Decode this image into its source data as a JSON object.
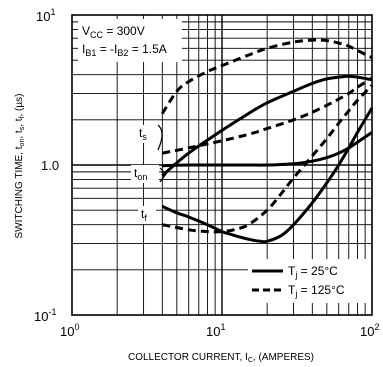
{
  "chart_data": {
    "type": "line",
    "x_scale": "log",
    "y_scale": "log",
    "xlim": [
      1,
      100
    ],
    "ylim": [
      0.1,
      10
    ],
    "grid": true,
    "xlabel": {
      "main": "COLLECTOR CURRENT, I",
      "sub": "C",
      "suffix": ", (AMPERES)"
    },
    "ylabel": {
      "parts": [
        {
          "t": "SWITCHING TIME, t",
          "sub": false
        },
        {
          "t": "on",
          "sub": true
        },
        {
          "t": ", t",
          "sub": false
        },
        {
          "t": "s",
          "sub": true
        },
        {
          "t": ", t",
          "sub": false
        },
        {
          "t": "f",
          "sub": true
        },
        {
          "t": ", (µs)",
          "sub": false
        }
      ]
    },
    "x_ticks": [
      {
        "base": "10",
        "exp": "0",
        "value": 1
      },
      {
        "base": "10",
        "exp": "1",
        "value": 10
      },
      {
        "base": "10",
        "exp": "2",
        "value": 100
      }
    ],
    "y_ticks": [
      {
        "base": "10",
        "exp": "1",
        "value": 10
      },
      {
        "base": "1.0",
        "exp": "",
        "value": 1
      },
      {
        "base": "10",
        "exp": "-1",
        "value": 0.1
      }
    ],
    "conditions": [
      {
        "main": "V",
        "sub": "CC",
        "rest": " = 300V"
      },
      {
        "main": "I",
        "sub": "B1",
        "rest": " = -I",
        "sub2": "B2",
        "rest2": " = 1.5A"
      }
    ],
    "legend": {
      "position": "bottom-right",
      "entries": [
        {
          "main": "T",
          "sub": "j",
          "rest": " = 25°C",
          "style": "solid"
        },
        {
          "main": "T",
          "sub": "j",
          "rest": " = 125°C",
          "style": "dashed"
        }
      ]
    },
    "curve_labels": [
      {
        "main": "t",
        "sub": "s",
        "at": {
          "x": 3.3,
          "y": 1.75
        }
      },
      {
        "main": "t",
        "sub": "on",
        "at": {
          "x": 3.0,
          "y": 0.9
        }
      },
      {
        "main": "t",
        "sub": "f",
        "at": {
          "x": 3.4,
          "y": 0.46
        }
      }
    ],
    "series": [
      {
        "parameter": "ts",
        "temperature": "25°C",
        "style": "solid",
        "x": [
          4,
          6,
          10,
          15,
          20,
          30,
          40,
          50,
          60,
          70,
          80,
          100
        ],
        "y": [
          0.85,
          1.2,
          1.7,
          2.2,
          2.6,
          3.1,
          3.5,
          3.75,
          3.85,
          3.9,
          3.85,
          3.7
        ]
      },
      {
        "parameter": "ts",
        "temperature": "125°C",
        "style": "dashed",
        "x": [
          4,
          5,
          6,
          8,
          10,
          15,
          20,
          30,
          40,
          50,
          60,
          70,
          80,
          100
        ],
        "y": [
          2.2,
          3.1,
          3.6,
          4.2,
          4.6,
          5.4,
          6.0,
          6.6,
          6.8,
          6.75,
          6.5,
          6.2,
          5.8,
          5.2
        ]
      },
      {
        "parameter": "ton",
        "temperature": "25°C",
        "style": "solid",
        "x": [
          4,
          6,
          10,
          15,
          20,
          30,
          40,
          50,
          60,
          70,
          80,
          100
        ],
        "y": [
          0.99,
          1.0,
          1.0,
          1.0,
          1.0,
          1.02,
          1.06,
          1.12,
          1.2,
          1.3,
          1.42,
          1.65
        ]
      },
      {
        "parameter": "ton",
        "temperature": "125°C",
        "style": "dashed",
        "x": [
          4,
          6,
          10,
          15,
          20,
          30,
          40,
          50,
          60,
          70,
          80,
          100
        ],
        "y": [
          1.2,
          1.3,
          1.45,
          1.6,
          1.75,
          2.0,
          2.25,
          2.5,
          2.75,
          3.0,
          3.3,
          3.8
        ]
      },
      {
        "parameter": "tf",
        "temperature": "25°C",
        "style": "solid",
        "x": [
          4,
          5,
          6,
          8,
          10,
          12,
          15,
          18,
          20,
          25,
          30,
          40,
          50,
          60,
          70,
          80,
          100
        ],
        "y": [
          0.53,
          0.48,
          0.45,
          0.4,
          0.36,
          0.34,
          0.32,
          0.31,
          0.31,
          0.34,
          0.4,
          0.56,
          0.76,
          1.0,
          1.3,
          1.65,
          2.4
        ]
      },
      {
        "parameter": "tf",
        "temperature": "125°C",
        "style": "dashed",
        "x": [
          4,
          6,
          8,
          10,
          12,
          15,
          20,
          25,
          30,
          40,
          50,
          60,
          70,
          80,
          100
        ],
        "y": [
          0.4,
          0.37,
          0.36,
          0.36,
          0.37,
          0.4,
          0.5,
          0.65,
          0.82,
          1.15,
          1.5,
          1.9,
          2.3,
          2.7,
          3.4
        ]
      }
    ]
  }
}
